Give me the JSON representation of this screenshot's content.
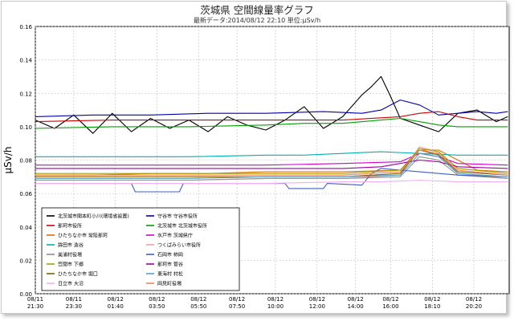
{
  "header": {
    "title": "茨城県 空間線量率グラフ",
    "subtitle": "最新データ:2014/08/12 22:10 単位:μSv/h"
  },
  "chart_data": {
    "type": "line",
    "ylabel": "μSv/h",
    "ylim": [
      0,
      0.16
    ],
    "yticks": [
      "0.00",
      "0.02",
      "0.04",
      "0.06",
      "0.08",
      "0.10",
      "0.12",
      "0.14",
      "0.16"
    ],
    "xlim": [
      0,
      24.67
    ],
    "xticks": [
      {
        "t": 0,
        "date": "08/11",
        "time": "21:30"
      },
      {
        "t": 2,
        "date": "08/11",
        "time": "23:30"
      },
      {
        "t": 4.17,
        "date": "08/12",
        "time": "01:40"
      },
      {
        "t": 6.33,
        "date": "08/12",
        "time": "03:50"
      },
      {
        "t": 8.5,
        "date": "08/12",
        "time": "05:50"
      },
      {
        "t": 10.5,
        "date": "08/12",
        "time": "07:50"
      },
      {
        "t": 12.5,
        "date": "08/12",
        "time": "10:00"
      },
      {
        "t": 14.67,
        "date": "08/12",
        "time": "12:00"
      },
      {
        "t": 16.67,
        "date": "08/12",
        "time": "14:00"
      },
      {
        "t": 18.5,
        "date": "08/12",
        "time": "16:00"
      },
      {
        "t": 20.67,
        "date": "08/12",
        "time": "18:10"
      },
      {
        "t": 22.83,
        "date": "08/12",
        "time": "20:20"
      }
    ],
    "grid": true,
    "legend_position": "bottom-left",
    "series": [
      {
        "name": "北茨城市関本町小川(環境省設置)",
        "color": "#000000",
        "x": [
          0,
          1,
          2,
          3,
          4,
          5,
          6,
          7,
          8,
          9,
          10,
          11,
          12,
          13,
          14,
          15,
          16,
          17,
          17.5,
          18,
          18.5,
          19,
          20,
          21,
          22,
          23,
          24,
          24.6
        ],
        "y": [
          0.104,
          0.099,
          0.107,
          0.096,
          0.108,
          0.097,
          0.105,
          0.099,
          0.104,
          0.097,
          0.106,
          0.101,
          0.098,
          0.104,
          0.112,
          0.099,
          0.106,
          0.119,
          0.124,
          0.13,
          0.118,
          0.105,
          0.101,
          0.097,
          0.108,
          0.11,
          0.103,
          0.106
        ]
      },
      {
        "name": "守谷市 守谷市役所",
        "color": "#0000b0",
        "x": [
          0,
          3,
          6,
          9,
          12,
          15,
          17,
          18,
          19,
          20,
          21,
          22,
          23,
          24,
          24.6
        ],
        "y": [
          0.106,
          0.107,
          0.107,
          0.108,
          0.108,
          0.109,
          0.108,
          0.11,
          0.116,
          0.113,
          0.107,
          0.108,
          0.109,
          0.108,
          0.109
        ]
      },
      {
        "name": "那珂市役所",
        "color": "#d00000",
        "x": [
          0,
          4,
          8,
          12,
          16,
          19,
          20,
          21,
          22,
          23,
          24.6
        ],
        "y": [
          0.103,
          0.104,
          0.104,
          0.104,
          0.104,
          0.106,
          0.108,
          0.109,
          0.106,
          0.104,
          0.104
        ]
      },
      {
        "name": "北茨城市 北茨城市役所",
        "color": "#00a000",
        "x": [
          0,
          4,
          8,
          12,
          14,
          16,
          18,
          19,
          20,
          21,
          22,
          24.6
        ],
        "y": [
          0.099,
          0.1,
          0.1,
          0.101,
          0.102,
          0.102,
          0.104,
          0.105,
          0.103,
          0.101,
          0.1,
          0.1
        ]
      },
      {
        "name": "ひたちなか市 常陸那珂",
        "color": "#e07000",
        "x": [
          0,
          3,
          6,
          9,
          12,
          16,
          19,
          20,
          21,
          22,
          23,
          24.6
        ],
        "y": [
          0.071,
          0.071,
          0.072,
          0.072,
          0.073,
          0.073,
          0.074,
          0.086,
          0.086,
          0.08,
          0.074,
          0.073
        ]
      },
      {
        "name": "水戸市 茨城県庁",
        "color": "#d000d0",
        "x": [
          0,
          4,
          8,
          12,
          16,
          19,
          20,
          21,
          22,
          24.6
        ],
        "y": [
          0.077,
          0.077,
          0.077,
          0.077,
          0.078,
          0.079,
          0.084,
          0.082,
          0.078,
          0.077
        ]
      },
      {
        "name": "鉾田市 造谷",
        "color": "#00b0b0",
        "x": [
          0,
          4,
          8,
          12,
          14,
          16,
          18,
          20,
          22,
          24.6
        ],
        "y": [
          0.082,
          0.082,
          0.082,
          0.083,
          0.083,
          0.084,
          0.085,
          0.084,
          0.083,
          0.083
        ]
      },
      {
        "name": "つくばみらい市役所",
        "color": "#f0a0a0",
        "x": [
          0,
          4,
          8,
          12,
          16,
          19,
          20,
          21,
          22,
          24.6
        ],
        "y": [
          0.068,
          0.068,
          0.068,
          0.069,
          0.069,
          0.071,
          0.088,
          0.085,
          0.072,
          0.069
        ]
      },
      {
        "name": "美浦村役場",
        "color": "#909090",
        "x": [
          0,
          4,
          8,
          12,
          16,
          19,
          20,
          21,
          22,
          24.6
        ],
        "y": [
          0.068,
          0.068,
          0.068,
          0.069,
          0.069,
          0.07,
          0.082,
          0.08,
          0.071,
          0.069
        ]
      },
      {
        "name": "石岡市 柿岡",
        "color": "#4060c0",
        "x": [
          0,
          4,
          5,
          5.2,
          7.5,
          7.7,
          10,
          12,
          13,
          13.2,
          15,
          15.2,
          17,
          17.5,
          18,
          20,
          22,
          24.6
        ],
        "y": [
          0.066,
          0.066,
          0.066,
          0.061,
          0.061,
          0.066,
          0.066,
          0.066,
          0.066,
          0.063,
          0.063,
          0.066,
          0.065,
          0.072,
          0.075,
          0.073,
          0.071,
          0.07
        ]
      },
      {
        "name": "笠間市 下郷",
        "color": "#a0a000",
        "x": [
          0,
          4,
          8,
          12,
          16,
          19,
          20,
          21,
          22,
          24.6
        ],
        "y": [
          0.072,
          0.072,
          0.072,
          0.072,
          0.072,
          0.074,
          0.087,
          0.085,
          0.075,
          0.072
        ]
      },
      {
        "name": "那珂市 菅谷",
        "color": "#a000a0",
        "x": [
          0,
          4,
          8,
          12,
          16,
          18,
          20,
          21,
          22,
          24.6
        ],
        "y": [
          0.075,
          0.075,
          0.075,
          0.075,
          0.075,
          0.076,
          0.08,
          0.079,
          0.076,
          0.075
        ]
      },
      {
        "name": "ひたちなか市 堀口",
        "color": "#806000",
        "x": [
          0,
          4,
          8,
          12,
          16,
          19,
          20,
          21,
          22,
          24.6
        ],
        "y": [
          0.07,
          0.07,
          0.07,
          0.07,
          0.07,
          0.072,
          0.086,
          0.083,
          0.073,
          0.071
        ]
      },
      {
        "name": "東海村 村松",
        "color": "#50a0d0",
        "x": [
          0,
          4,
          8,
          12,
          16,
          19,
          20,
          21,
          22,
          24.6
        ],
        "y": [
          0.069,
          0.069,
          0.069,
          0.07,
          0.07,
          0.071,
          0.084,
          0.082,
          0.072,
          0.07
        ]
      },
      {
        "name": "日立市 大沼",
        "color": "#f0b0f0",
        "x": [
          0,
          4,
          8,
          12,
          16,
          18,
          20,
          22,
          24.6
        ],
        "y": [
          0.066,
          0.066,
          0.066,
          0.066,
          0.067,
          0.067,
          0.068,
          0.067,
          0.067
        ]
      },
      {
        "name": "岡見町役場",
        "color": "#f08060",
        "x": [
          0,
          4,
          8,
          12,
          16,
          19,
          20,
          21,
          22,
          24.6
        ],
        "y": [
          0.071,
          0.071,
          0.071,
          0.071,
          0.071,
          0.073,
          0.086,
          0.084,
          0.074,
          0.071
        ]
      }
    ]
  }
}
